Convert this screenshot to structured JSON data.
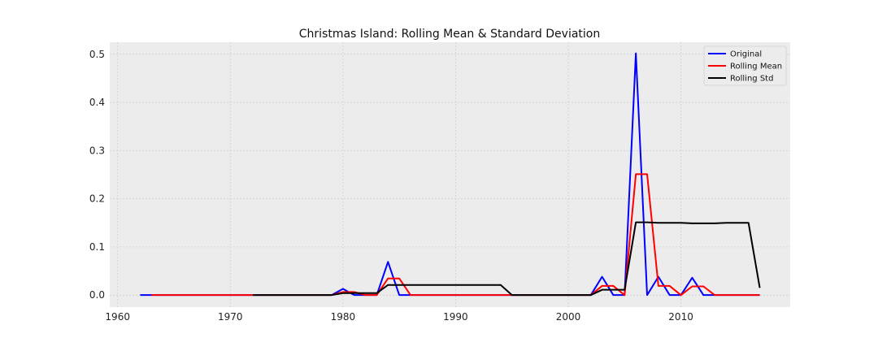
{
  "chart_data": {
    "type": "line",
    "title": "Christmas Island: Rolling Mean & Standard Deviation",
    "xlabel": "",
    "ylabel": "",
    "xlim": [
      1959.3,
      2019.7
    ],
    "ylim": [
      -0.025,
      0.525
    ],
    "xticks": [
      1960,
      1970,
      1980,
      1990,
      2000,
      2010
    ],
    "yticks": [
      0.0,
      0.1,
      0.2,
      0.3,
      0.4,
      0.5
    ],
    "ytick_labels": [
      "0.0",
      "0.1",
      "0.2",
      "0.3",
      "0.4",
      "0.5"
    ],
    "grid": true,
    "legend_position": "top-right",
    "colors": {
      "background": "#ececec",
      "grid": "#cfcfcf"
    },
    "series": [
      {
        "name": "Original",
        "color": "#0000ff",
        "x": [
          1962,
          1963,
          1964,
          1965,
          1966,
          1967,
          1968,
          1969,
          1970,
          1971,
          1972,
          1973,
          1974,
          1975,
          1976,
          1977,
          1978,
          1979,
          1980,
          1981,
          1982,
          1983,
          1984,
          1985,
          1986,
          1987,
          1988,
          1989,
          1990,
          1991,
          1992,
          1993,
          1994,
          1995,
          1996,
          1997,
          1998,
          1999,
          2000,
          2001,
          2002,
          2003,
          2004,
          2005,
          2006,
          2007,
          2008,
          2009,
          2010,
          2011,
          2012,
          2013,
          2014,
          2015,
          2016,
          2017
        ],
        "y": [
          0,
          0,
          0,
          0,
          0,
          0,
          0,
          0,
          0,
          0,
          0,
          0,
          0,
          0,
          0,
          0,
          0,
          0,
          0.013,
          0,
          0,
          0,
          0.069,
          0,
          0,
          0,
          0,
          0,
          0,
          0,
          0,
          0,
          0,
          0,
          0,
          0,
          0,
          0,
          0,
          0,
          0,
          0.038,
          0,
          0,
          0.502,
          0,
          0.038,
          0,
          0,
          0.036,
          0,
          0,
          0,
          0,
          0,
          0
        ]
      },
      {
        "name": "Rolling Mean",
        "color": "#ff0000",
        "x": [
          1963,
          1964,
          1965,
          1966,
          1967,
          1968,
          1969,
          1970,
          1971,
          1972,
          1973,
          1974,
          1975,
          1976,
          1977,
          1978,
          1979,
          1980,
          1981,
          1982,
          1983,
          1984,
          1985,
          1986,
          1987,
          1988,
          1989,
          1990,
          1991,
          1992,
          1993,
          1994,
          1995,
          1996,
          1997,
          1998,
          1999,
          2000,
          2001,
          2002,
          2003,
          2004,
          2005,
          2006,
          2007,
          2008,
          2009,
          2010,
          2011,
          2012,
          2013,
          2014,
          2015,
          2016,
          2017
        ],
        "y": [
          0,
          0,
          0,
          0,
          0,
          0,
          0,
          0,
          0,
          0,
          0,
          0,
          0,
          0,
          0,
          0,
          0,
          0.0065,
          0.0065,
          0,
          0,
          0.0345,
          0.0345,
          0,
          0,
          0,
          0,
          0,
          0,
          0,
          0,
          0,
          0,
          0,
          0,
          0,
          0,
          0,
          0,
          0,
          0.019,
          0.019,
          0,
          0.251,
          0.251,
          0.019,
          0.019,
          0,
          0.018,
          0.018,
          0,
          0,
          0,
          0,
          0
        ]
      },
      {
        "name": "Rolling Std",
        "color": "#000000",
        "x": [
          1972,
          1973,
          1974,
          1975,
          1976,
          1977,
          1978,
          1979,
          1980,
          1981,
          1982,
          1983,
          1984,
          1985,
          1986,
          1987,
          1988,
          1989,
          1990,
          1991,
          1992,
          1993,
          1994,
          1995,
          1996,
          1997,
          1998,
          1999,
          2000,
          2001,
          2002,
          2003,
          2004,
          2005,
          2006,
          2007,
          2008,
          2009,
          2010,
          2011,
          2012,
          2013,
          2014,
          2015,
          2016,
          2017
        ],
        "y": [
          0,
          0,
          0,
          0,
          0,
          0,
          0,
          0,
          0.004,
          0.004,
          0.004,
          0.004,
          0.021,
          0.021,
          0.021,
          0.021,
          0.021,
          0.021,
          0.021,
          0.021,
          0.021,
          0.021,
          0.021,
          0,
          0,
          0,
          0,
          0,
          0,
          0,
          0,
          0.011,
          0.011,
          0.011,
          0.151,
          0.151,
          0.15,
          0.15,
          0.15,
          0.149,
          0.149,
          0.149,
          0.15,
          0.15,
          0.15,
          0.015
        ]
      }
    ]
  }
}
